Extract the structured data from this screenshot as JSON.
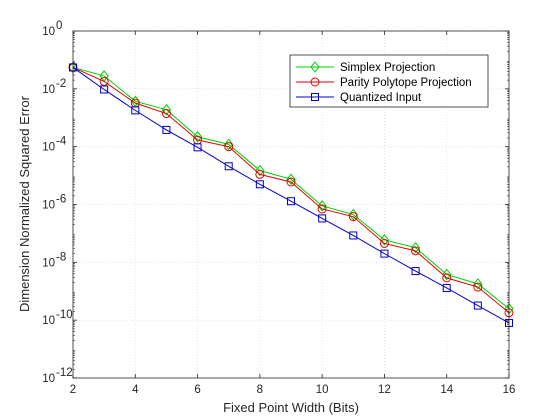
{
  "chart_data": {
    "type": "line",
    "xlabel": "Fixed Point Width (Bits)",
    "ylabel": "Dimension Normalized Squared Error",
    "x": [
      2,
      3,
      4,
      5,
      6,
      7,
      8,
      9,
      10,
      11,
      12,
      13,
      14,
      15,
      16
    ],
    "xlim": [
      2,
      16
    ],
    "ylim": [
      1e-12,
      1
    ],
    "yscale": "log",
    "x_ticks": [
      "2",
      "4",
      "6",
      "8",
      "10",
      "12",
      "14",
      "16"
    ],
    "y_tick_bases": [
      "10",
      "10",
      "10",
      "10",
      "10",
      "10",
      "10"
    ],
    "y_tick_exponents": [
      "-12",
      "-10",
      "-8",
      "-6",
      "-4",
      "-2",
      "0"
    ],
    "grid": true,
    "legend_position": "top-right",
    "series": [
      {
        "name": "Simplex Projection",
        "color": "#00cc00",
        "marker": "diamond",
        "values": [
          0.055,
          0.028,
          0.0037,
          0.0019,
          0.00022,
          0.00012,
          1.5e-05,
          7.5e-06,
          9e-07,
          4.5e-07,
          6e-08,
          3.2e-08,
          3.8e-09,
          1.8e-09,
          2.5e-10
        ]
      },
      {
        "name": "Parity Polytope Projection",
        "color": "#e00000",
        "marker": "circle",
        "values": [
          0.055,
          0.018,
          0.0032,
          0.0014,
          0.00017,
          0.0001,
          1.1e-05,
          6e-06,
          7e-07,
          3.8e-07,
          4.5e-08,
          2.5e-08,
          2.9e-09,
          1.4e-09,
          1.8e-10
        ]
      },
      {
        "name": "Quantized Input",
        "color": "#0000cc",
        "marker": "square",
        "values": [
          0.055,
          0.0095,
          0.0018,
          0.00038,
          9.5e-05,
          2.1e-05,
          5e-06,
          1.3e-06,
          3.3e-07,
          8.5e-08,
          2e-08,
          5e-09,
          1.3e-09,
          3.2e-10,
          8e-11
        ]
      }
    ]
  }
}
